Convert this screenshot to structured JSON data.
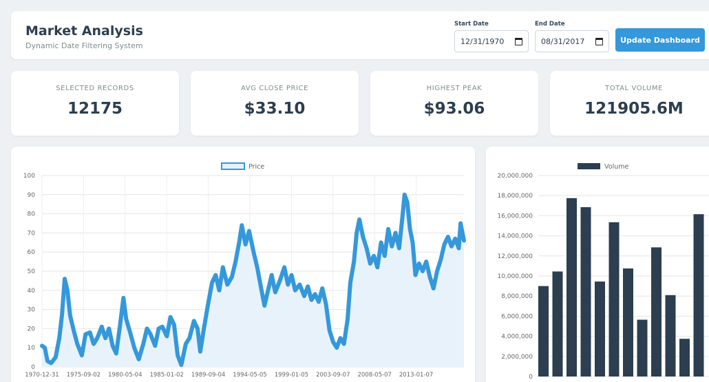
{
  "header": {
    "title": "Market Analysis",
    "subtitle": "Dynamic Date Filtering System",
    "start_label": "Start Date",
    "start_value": "12/31/1970",
    "end_label": "End Date",
    "end_value": "08/31/2017",
    "update_button": "Update Dashboard"
  },
  "stats": [
    {
      "label": "SELECTED RECORDS",
      "value": "12175"
    },
    {
      "label": "AVG CLOSE PRICE",
      "value": "$33.10"
    },
    {
      "label": "HIGHEST PEAK",
      "value": "$93.06"
    },
    {
      "label": "TOTAL VOLUME",
      "value": "121905.6M"
    }
  ],
  "colors": {
    "accent": "#3498db",
    "price_line": "#3498db",
    "price_fill": "#e8f2fb",
    "volume_bar": "#2c3e50",
    "background": "#eef1f4"
  },
  "icons": {
    "calendar": "calendar-icon"
  },
  "chart_data": [
    {
      "type": "area",
      "legend": "Price",
      "legend_position": "top",
      "grid": true,
      "ylim": [
        0,
        100
      ],
      "yticks": [
        0,
        10,
        20,
        30,
        40,
        50,
        60,
        70,
        80,
        90,
        100
      ],
      "xtick_labels": [
        "1970-12-31",
        "1975-09-02",
        "1980-05-04",
        "1985-01-02",
        "1989-09-04",
        "1994-05-05",
        "1999-01-05",
        "2003-09-07",
        "2008-05-07",
        "2013-01-07"
      ],
      "x_range": [
        1970.99,
        2017.67
      ],
      "points": [
        [
          1970.99,
          11
        ],
        [
          1971.3,
          10
        ],
        [
          1971.6,
          3
        ],
        [
          1972.0,
          2
        ],
        [
          1972.5,
          5
        ],
        [
          1972.9,
          15
        ],
        [
          1973.2,
          27
        ],
        [
          1973.5,
          46
        ],
        [
          1973.8,
          40
        ],
        [
          1974.1,
          27
        ],
        [
          1974.5,
          19
        ],
        [
          1974.9,
          12
        ],
        [
          1975.4,
          6
        ],
        [
          1975.8,
          17
        ],
        [
          1976.3,
          18
        ],
        [
          1976.7,
          12
        ],
        [
          1977.1,
          15
        ],
        [
          1977.6,
          21
        ],
        [
          1978.0,
          15
        ],
        [
          1978.4,
          20
        ],
        [
          1978.8,
          11
        ],
        [
          1979.2,
          7
        ],
        [
          1979.6,
          21
        ],
        [
          1980.0,
          36
        ],
        [
          1980.3,
          25
        ],
        [
          1980.8,
          17
        ],
        [
          1981.2,
          10
        ],
        [
          1981.7,
          4
        ],
        [
          1982.2,
          12
        ],
        [
          1982.6,
          20
        ],
        [
          1983.0,
          17
        ],
        [
          1983.5,
          11
        ],
        [
          1983.9,
          20
        ],
        [
          1984.3,
          21
        ],
        [
          1984.8,
          16
        ],
        [
          1985.2,
          26
        ],
        [
          1985.6,
          22
        ],
        [
          1986.0,
          6
        ],
        [
          1986.4,
          1
        ],
        [
          1986.9,
          12
        ],
        [
          1987.3,
          15
        ],
        [
          1987.8,
          24
        ],
        [
          1988.2,
          20
        ],
        [
          1988.5,
          8
        ],
        [
          1988.9,
          20
        ],
        [
          1989.3,
          31
        ],
        [
          1989.8,
          44
        ],
        [
          1990.2,
          48
        ],
        [
          1990.6,
          40
        ],
        [
          1991.0,
          52
        ],
        [
          1991.5,
          43
        ],
        [
          1992.0,
          47
        ],
        [
          1992.4,
          55
        ],
        [
          1992.8,
          65
        ],
        [
          1993.1,
          74
        ],
        [
          1993.5,
          64
        ],
        [
          1993.9,
          71
        ],
        [
          1994.4,
          60
        ],
        [
          1994.8,
          52
        ],
        [
          1995.2,
          42
        ],
        [
          1995.6,
          32
        ],
        [
          1996.0,
          40
        ],
        [
          1996.4,
          48
        ],
        [
          1996.8,
          39
        ],
        [
          1997.3,
          45
        ],
        [
          1997.8,
          52
        ],
        [
          1998.2,
          43
        ],
        [
          1998.6,
          48
        ],
        [
          1999.0,
          40
        ],
        [
          1999.5,
          43
        ],
        [
          2000.0,
          37
        ],
        [
          2000.4,
          42
        ],
        [
          2000.8,
          35
        ],
        [
          2001.2,
          38
        ],
        [
          2001.6,
          34
        ],
        [
          2002.0,
          41
        ],
        [
          2002.4,
          33
        ],
        [
          2002.8,
          19
        ],
        [
          2003.2,
          13
        ],
        [
          2003.6,
          10
        ],
        [
          2004.0,
          15
        ],
        [
          2004.4,
          12
        ],
        [
          2004.8,
          25
        ],
        [
          2005.1,
          44
        ],
        [
          2005.5,
          55
        ],
        [
          2005.8,
          70
        ],
        [
          2006.1,
          77
        ],
        [
          2006.5,
          68
        ],
        [
          2006.9,
          62
        ],
        [
          2007.3,
          54
        ],
        [
          2007.7,
          58
        ],
        [
          2008.1,
          52
        ],
        [
          2008.5,
          65
        ],
        [
          2008.9,
          58
        ],
        [
          2009.3,
          72
        ],
        [
          2009.7,
          63
        ],
        [
          2010.1,
          70
        ],
        [
          2010.5,
          62
        ],
        [
          2010.9,
          80
        ],
        [
          2011.1,
          90
        ],
        [
          2011.4,
          86
        ],
        [
          2011.7,
          72
        ],
        [
          2012.0,
          65
        ],
        [
          2012.3,
          48
        ],
        [
          2012.7,
          54
        ],
        [
          2013.1,
          50
        ],
        [
          2013.5,
          55
        ],
        [
          2013.9,
          47
        ],
        [
          2014.3,
          41
        ],
        [
          2014.7,
          50
        ],
        [
          2015.1,
          56
        ],
        [
          2015.5,
          64
        ],
        [
          2015.9,
          68
        ],
        [
          2016.3,
          63
        ],
        [
          2016.7,
          67
        ],
        [
          2017.1,
          62
        ],
        [
          2017.3,
          75
        ],
        [
          2017.67,
          66
        ]
      ]
    },
    {
      "type": "bar",
      "legend": "Volume",
      "legend_position": "top",
      "grid": true,
      "ylim": [
        0,
        20000000
      ],
      "yticks": [
        "0",
        "2,000,000",
        "4,000,000",
        "6,000,000",
        "8,000,000",
        "10,000,000",
        "12,000,000",
        "14,000,000",
        "16,000,000",
        "18,000,000",
        "20,000,000"
      ],
      "values": [
        9000000,
        10450000,
        17750000,
        16850000,
        9450000,
        15350000,
        10750000,
        5650000,
        12850000,
        8100000,
        3750000,
        16150000
      ]
    }
  ]
}
